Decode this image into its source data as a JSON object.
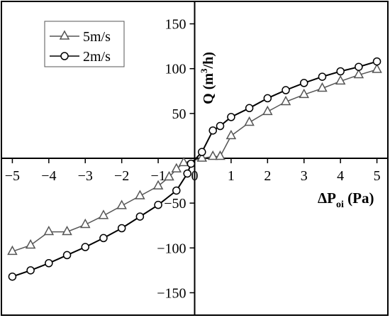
{
  "chart_data": {
    "type": "line",
    "xlabel": {
      "main": "ΔP",
      "sub": "oi",
      "unit": " (Pa)"
    },
    "ylabel": {
      "main": "Q (m",
      "sup": "3",
      "unit": "/h)"
    },
    "xlim": [
      -5.3,
      5.3
    ],
    "ylim": [
      -175,
      175
    ],
    "x_ticks": [
      -5,
      -4,
      -3,
      -2,
      -1,
      0,
      1,
      2,
      3,
      4,
      5
    ],
    "x_tick_labels": [
      "−5",
      "−4",
      "−3",
      "−2",
      "−1",
      "0",
      "1",
      "2",
      "3",
      "4",
      "5"
    ],
    "y_ticks": [
      -150,
      -100,
      -50,
      50,
      100,
      150
    ],
    "y_tick_labels": [
      "−150",
      "−100",
      "−50",
      "50",
      "100",
      "150"
    ],
    "grid": false,
    "legend_position": "top-left",
    "series": [
      {
        "name": "5m/s",
        "marker": "triangle",
        "color": "#555555",
        "points": [
          [
            -5,
            -104
          ],
          [
            -4.5,
            -97
          ],
          [
            -4,
            -82
          ],
          [
            -3.5,
            -82
          ],
          [
            -3,
            -74
          ],
          [
            -2.5,
            -64
          ],
          [
            -2,
            -53
          ],
          [
            -1.5,
            -42
          ],
          [
            -1,
            -31
          ],
          [
            -0.7,
            -21
          ],
          [
            -0.5,
            -12
          ],
          [
            -0.3,
            -5
          ],
          [
            0.2,
            0
          ],
          [
            0.5,
            2
          ],
          [
            0.7,
            2
          ],
          [
            1,
            25
          ],
          [
            1.5,
            40
          ],
          [
            2,
            52
          ],
          [
            2.5,
            63
          ],
          [
            3,
            71
          ],
          [
            3.5,
            78
          ],
          [
            4,
            86
          ],
          [
            4.5,
            93
          ],
          [
            5,
            99
          ]
        ]
      },
      {
        "name": "2m/s",
        "marker": "circle",
        "color": "#000000",
        "points": [
          [
            -5,
            -132
          ],
          [
            -4.5,
            -125
          ],
          [
            -4,
            -117
          ],
          [
            -3.5,
            -108
          ],
          [
            -3,
            -99
          ],
          [
            -2.5,
            -89
          ],
          [
            -2,
            -78
          ],
          [
            -1.5,
            -65
          ],
          [
            -1,
            -52
          ],
          [
            -0.5,
            -36
          ],
          [
            -0.2,
            -17
          ],
          [
            -0.1,
            -6
          ],
          [
            0.2,
            7
          ],
          [
            0.5,
            31
          ],
          [
            0.7,
            36
          ],
          [
            1,
            46
          ],
          [
            1.5,
            56
          ],
          [
            2,
            67
          ],
          [
            2.5,
            76
          ],
          [
            3,
            84
          ],
          [
            3.5,
            91
          ],
          [
            4,
            97
          ],
          [
            4.5,
            102
          ],
          [
            5,
            108
          ]
        ]
      }
    ]
  }
}
